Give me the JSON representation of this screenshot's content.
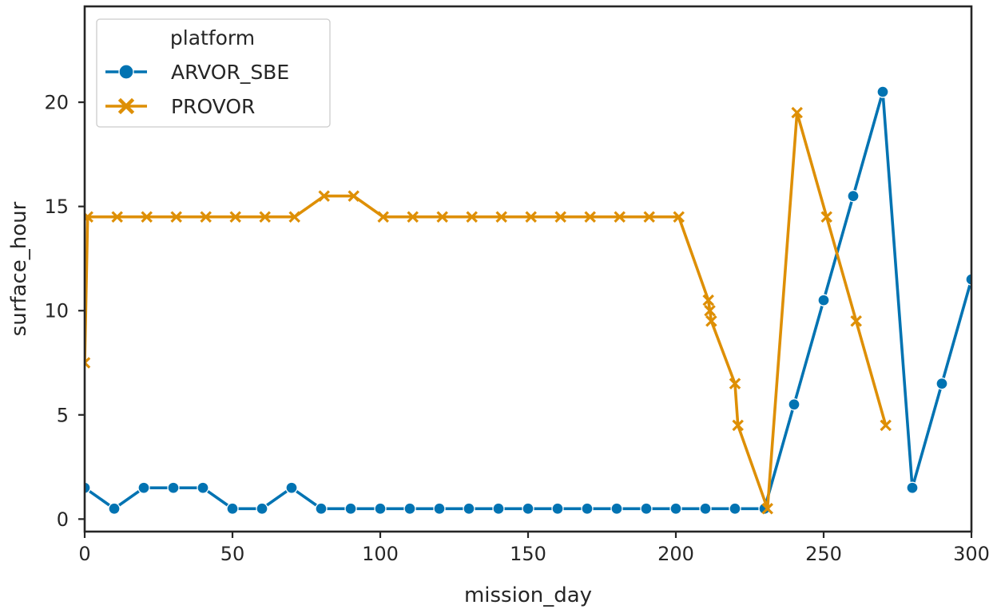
{
  "chart_data": {
    "type": "line",
    "title": "",
    "xlabel": "mission_day",
    "ylabel": "surface_hour",
    "xlim": [
      0,
      300
    ],
    "ylim": [
      -0.6,
      24.6
    ],
    "xticks": [
      0,
      50,
      100,
      150,
      200,
      250,
      300
    ],
    "yticks": [
      0,
      5,
      10,
      15,
      20
    ],
    "grid": false,
    "legend": {
      "title": "platform",
      "placement": "top-left",
      "items": [
        "ARVOR_SBE",
        "PROVOR"
      ]
    },
    "series": [
      {
        "name": "ARVOR_SBE",
        "color": "#0173b2",
        "marker": "circle",
        "x": [
          0,
          10,
          20,
          30,
          40,
          50,
          60,
          70,
          80,
          90,
          100,
          110,
          120,
          130,
          140,
          150,
          160,
          170,
          180,
          190,
          200,
          210,
          220,
          230,
          240,
          250,
          260,
          270,
          280,
          290,
          300
        ],
        "y": [
          1.5,
          0.5,
          1.5,
          1.5,
          1.5,
          0.5,
          0.5,
          1.5,
          0.5,
          0.5,
          0.5,
          0.5,
          0.5,
          0.5,
          0.5,
          0.5,
          0.5,
          0.5,
          0.5,
          0.5,
          0.5,
          0.5,
          0.5,
          0.5,
          5.5,
          10.5,
          15.5,
          20.5,
          1.5,
          6.5,
          11.5
        ]
      },
      {
        "name": "PROVOR",
        "color": "#de8f05",
        "marker": "x",
        "x": [
          0,
          1,
          11,
          21,
          31,
          41,
          51,
          61,
          71,
          81,
          91,
          101,
          111,
          121,
          131,
          141,
          151,
          161,
          171,
          181,
          191,
          201,
          211,
          211.5,
          212,
          220,
          221,
          231,
          241,
          251,
          261,
          271
        ],
        "y": [
          7.5,
          14.5,
          14.5,
          14.5,
          14.5,
          14.5,
          14.5,
          14.5,
          14.5,
          15.5,
          15.5,
          14.5,
          14.5,
          14.5,
          14.5,
          14.5,
          14.5,
          14.5,
          14.5,
          14.5,
          14.5,
          14.5,
          10.5,
          10,
          9.5,
          6.5,
          4.5,
          0.5,
          19.5,
          14.5,
          9.5,
          4.5
        ]
      }
    ]
  }
}
